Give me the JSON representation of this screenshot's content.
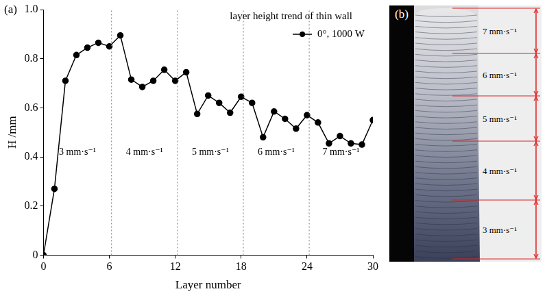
{
  "chart_data": {
    "type": "line",
    "panel": "(a)",
    "legend_title": "layer height trend of thin wall",
    "x_label": "Layer number",
    "y_label": "H /mm",
    "x": [
      0,
      1,
      2,
      3,
      4,
      5,
      6,
      7,
      8,
      9,
      10,
      11,
      12,
      13,
      14,
      15,
      16,
      17,
      18,
      19,
      20,
      21,
      22,
      23,
      24,
      25,
      26,
      27,
      28,
      29,
      30
    ],
    "series": [
      {
        "name": "0°, 1000 W",
        "color": "#000000",
        "marker": "circle",
        "line_style": "solid",
        "values": [
          0,
          0.27,
          0.71,
          0.815,
          0.845,
          0.865,
          0.85,
          0.895,
          0.715,
          0.685,
          0.71,
          0.755,
          0.71,
          0.745,
          0.575,
          0.65,
          0.62,
          0.58,
          0.645,
          0.62,
          0.48,
          0.585,
          0.555,
          0.515,
          0.57,
          0.54,
          0.455,
          0.485,
          0.455,
          0.45,
          0.55
        ]
      }
    ],
    "regions": [
      {
        "label": "3 mm·s⁻¹",
        "from": 0,
        "to": 6.2
      },
      {
        "label": "4 mm·s⁻¹",
        "from": 6.2,
        "to": 12.2
      },
      {
        "label": "5 mm·s⁻¹",
        "from": 12.2,
        "to": 18.2
      },
      {
        "label": "6 mm·s⁻¹",
        "from": 18.2,
        "to": 24.2
      },
      {
        "label": "7 mm·s⁻¹",
        "from": 24.2,
        "to": 30
      }
    ],
    "xlim": [
      0,
      30
    ],
    "xticks": [
      0,
      6,
      12,
      18,
      24,
      30
    ],
    "ylim": [
      0,
      1
    ],
    "yticks": [
      0,
      0.2,
      0.4,
      0.6,
      0.8,
      {
        "value": 1,
        "label": "1.0"
      }
    ],
    "grid": false,
    "legend": "upper right"
  },
  "photo": {
    "panel": "(b)",
    "labels_top_to_bottom": [
      "7 mm·s⁻¹",
      "6 mm·s⁻¹",
      "5 mm·s⁻¹",
      "4 mm·s⁻¹",
      "3 mm·s⁻¹"
    ]
  }
}
